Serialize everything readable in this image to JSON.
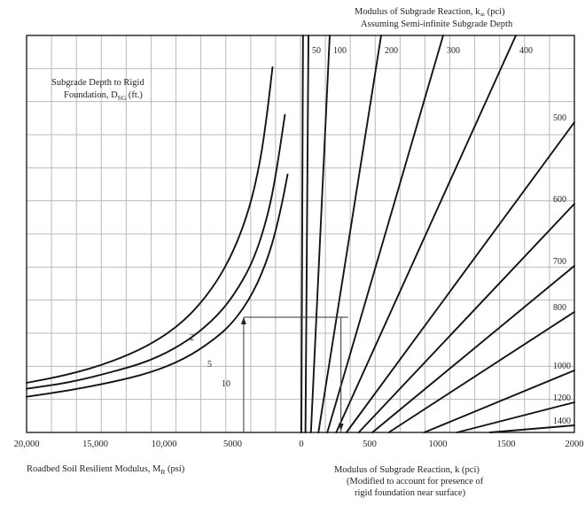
{
  "chart_data": {
    "type": "line",
    "title_top_line1": "Modulus of Subgrade Reaction, k",
    "title_top_sub": "∞",
    "title_top_unit": " (pci)",
    "title_top_line2": "Assuming Semi-infinite Subgrade Depth",
    "depth_title_line1": "Subgrade Depth to Rigid",
    "depth_title_line2_prefix": "Foundation, D",
    "depth_title_line2_sub": "SG",
    "depth_title_line2_suffix": " (ft.)",
    "xlabel_left_prefix": "Roadbed Soil Resilient Modulus, M",
    "xlabel_left_sub": "R",
    "xlabel_left_suffix": " (psi)",
    "xlabel_right_line1": "Modulus of Subgrade Reaction, k (pci)",
    "xlabel_right_line2": "(Modified to account for presence of",
    "xlabel_right_line3": "rigid foundation near surface)",
    "x_left_ticks": [
      "20,000",
      "15,000",
      "10,000",
      "5000",
      "0"
    ],
    "x_left_range": [
      20000,
      0
    ],
    "x_right_ticks": [
      "500",
      "1000",
      "1500",
      "2000"
    ],
    "x_right_range": [
      0,
      2000
    ],
    "grid": true,
    "k_inf_top_labels": [
      "50",
      "100",
      "200",
      "300",
      "400"
    ],
    "k_inf_right_labels": [
      "500",
      "600",
      "700",
      "800",
      "1000",
      "1200",
      "1400"
    ],
    "k_inf_lines": [
      {
        "name": "50",
        "k": 50,
        "bottom_k": 30
      },
      {
        "name": "100",
        "k": 100,
        "bottom_k": 70
      },
      {
        "name": "200",
        "k": 200,
        "bottom_k": 125
      },
      {
        "name": "300",
        "k": 300,
        "bottom_k": 190
      },
      {
        "name": "400",
        "k": 400,
        "bottom_k": 255
      },
      {
        "name": "500",
        "k": 500,
        "bottom_k": 330
      },
      {
        "name": "600",
        "k": 600,
        "bottom_k": 420
      },
      {
        "name": "700",
        "k": 700,
        "bottom_k": 520
      },
      {
        "name": "800",
        "k": 800,
        "bottom_k": 640
      },
      {
        "name": "1000",
        "k": 1000,
        "bottom_k": 900
      },
      {
        "name": "1200",
        "k": 1200,
        "bottom_k": 1140
      },
      {
        "name": "1400",
        "k": 1400,
        "bottom_k": 1380
      }
    ],
    "depth_curves": [
      {
        "name": "2",
        "points": [
          [
            20000,
            12.5
          ],
          [
            17000,
            14.5
          ],
          [
            14000,
            17.5
          ],
          [
            11000,
            22
          ],
          [
            8500,
            28
          ],
          [
            6500,
            36
          ],
          [
            5000,
            45
          ],
          [
            3800,
            56
          ],
          [
            3000,
            68
          ],
          [
            2500,
            80
          ],
          [
            2100,
            92
          ]
        ]
      },
      {
        "name": "5",
        "points": [
          [
            20000,
            11
          ],
          [
            17000,
            12.5
          ],
          [
            14000,
            15
          ],
          [
            11000,
            18
          ],
          [
            8500,
            22.5
          ],
          [
            6500,
            28
          ],
          [
            5000,
            34
          ],
          [
            3500,
            43
          ],
          [
            2400,
            55
          ],
          [
            1800,
            66
          ],
          [
            1200,
            80
          ]
        ]
      },
      {
        "name": "10",
        "points": [
          [
            20000,
            9
          ],
          [
            17000,
            10.5
          ],
          [
            14000,
            12.5
          ],
          [
            11000,
            15
          ],
          [
            8500,
            18.5
          ],
          [
            6500,
            23
          ],
          [
            5000,
            27.5
          ],
          [
            3500,
            35
          ],
          [
            2300,
            45
          ],
          [
            1500,
            56
          ],
          [
            1000,
            65
          ]
        ]
      }
    ],
    "example_path": {
      "mr": 4200,
      "k_start": 0,
      "k_inf": 300,
      "k_mod": 290
    }
  }
}
